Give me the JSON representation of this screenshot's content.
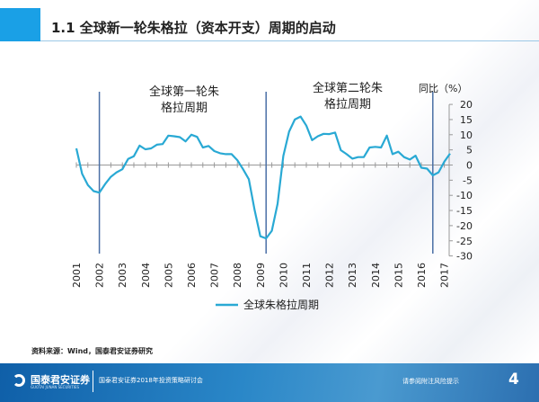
{
  "header": {
    "title": "1.1 全球新一轮朱格拉（资本开支）周期的启动"
  },
  "chart_data": {
    "type": "line",
    "ylabel": "同比（%）",
    "ylim": [
      -30,
      20
    ],
    "yticks": [
      20,
      15,
      10,
      5,
      0,
      -5,
      -10,
      -15,
      -20,
      -25,
      -30
    ],
    "xticks": [
      "2001",
      "2002",
      "2003",
      "2004",
      "2005",
      "2006",
      "2007",
      "2008",
      "2009",
      "2010",
      "2011",
      "2012",
      "2013",
      "2014",
      "2015",
      "2016",
      "2017"
    ],
    "legend_position": "bottom",
    "color": "#29a9d4",
    "divider_color": "#4a6fa5",
    "series": [
      {
        "name": "全球朱格拉周期",
        "x": [
          2001,
          2001.25,
          2001.5,
          2001.75,
          2002,
          2002.25,
          2002.5,
          2002.75,
          2003,
          2003.25,
          2003.5,
          2003.75,
          2004,
          2004.25,
          2004.5,
          2004.75,
          2005,
          2005.25,
          2005.5,
          2005.75,
          2006,
          2006.25,
          2006.5,
          2006.75,
          2007,
          2007.25,
          2007.5,
          2007.75,
          2008,
          2008.25,
          2008.5,
          2008.75,
          2009,
          2009.25,
          2009.5,
          2009.75,
          2010,
          2010.25,
          2010.5,
          2010.75,
          2011,
          2011.25,
          2011.5,
          2011.75,
          2012,
          2012.25,
          2012.5,
          2012.75,
          2013,
          2013.25,
          2013.5,
          2013.75,
          2014,
          2014.25,
          2014.5,
          2014.75,
          2015,
          2015.25,
          2015.5,
          2015.75,
          2016,
          2016.25,
          2016.5,
          2016.75,
          2017,
          2017.25
        ],
        "values": [
          5.5,
          -2.9,
          -6.6,
          -8.6,
          -9.1,
          -6.3,
          -3.9,
          -2.4,
          -1.4,
          2,
          2.9,
          6.4,
          5.2,
          5.5,
          6.7,
          6.9,
          9.7,
          9.5,
          9.2,
          7.8,
          10,
          9.3,
          5.8,
          6.3,
          4.6,
          3.9,
          3.6,
          3.6,
          1.6,
          -1.4,
          -4.7,
          -14.8,
          -23.5,
          -24.2,
          -21.7,
          -12.8,
          3,
          11,
          15,
          16,
          13,
          8.2,
          9.5,
          10.3,
          10.2,
          10.7,
          4.9,
          3.6,
          2.1,
          2.6,
          2.6,
          5.8,
          6,
          5.8,
          9.7,
          3.6,
          4.4,
          2.6,
          1.8,
          3.1,
          -0.9,
          -1.2,
          -3.4,
          -2.4,
          1.1,
          3.8
        ]
      }
    ],
    "dividers": [
      2002,
      2009.25,
      2016.5
    ],
    "annotations": [
      {
        "text": "全球第一轮朱\n格拉周期"
      },
      {
        "text": "全球第二轮朱\n格拉周期"
      }
    ]
  },
  "source": "资料来源：Wind，国泰君安证券研究",
  "footer": {
    "logo": "国泰君安证券",
    "logo_sub": "GUOTAI JUNAN SECURITIES",
    "event": "国泰君安证券2018年投资策略研讨会",
    "risk": "请参阅附注风险提示",
    "page": "4"
  }
}
